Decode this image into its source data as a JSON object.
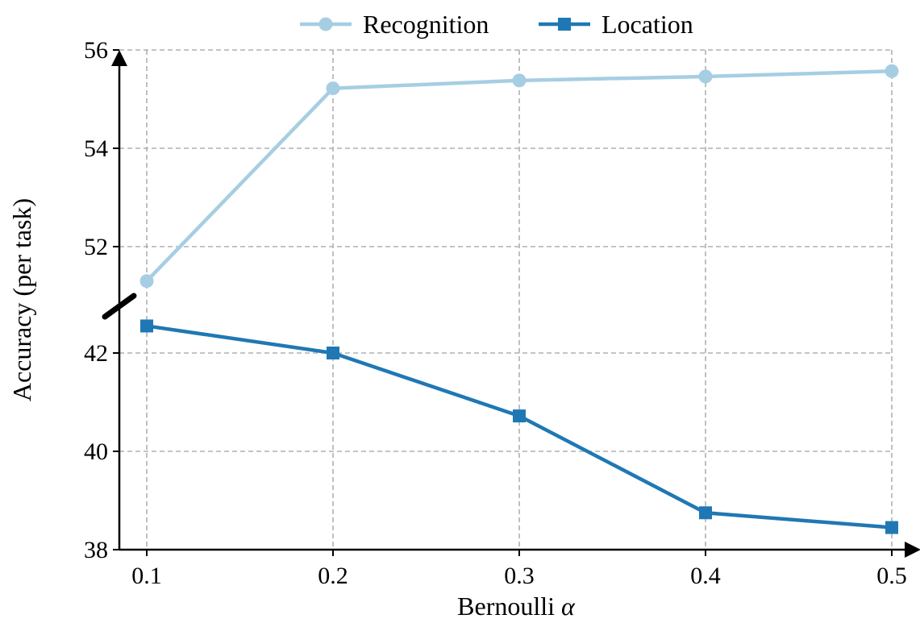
{
  "chart_data": {
    "type": "line",
    "x": [
      0.1,
      0.2,
      0.3,
      0.4,
      0.5
    ],
    "x_tick_labels": [
      "0.1",
      "0.2",
      "0.3",
      "0.4",
      "0.5"
    ],
    "xlabel": "Bernoulli",
    "xlabel_symbol": "α",
    "ylabel": "Accuracy (per task)",
    "y_ticks_lower": [
      38,
      40,
      42
    ],
    "y_ticks_upper": [
      52,
      54,
      56
    ],
    "ylim_lower": [
      38,
      42.9
    ],
    "ylim_upper": [
      50.7,
      56
    ],
    "broken_y_axis": true,
    "grid": true,
    "legend_placement": "top-center",
    "series": [
      {
        "name": "Recognition",
        "values": [
          51.3,
          55.22,
          55.38,
          55.46,
          55.57
        ],
        "color": "#a6cee3",
        "marker": "circle",
        "axis_segment": "upper"
      },
      {
        "name": "Location",
        "values": [
          42.55,
          42.0,
          40.72,
          38.75,
          38.45
        ],
        "color": "#1f78b4",
        "marker": "square",
        "axis_segment": "lower"
      }
    ]
  }
}
